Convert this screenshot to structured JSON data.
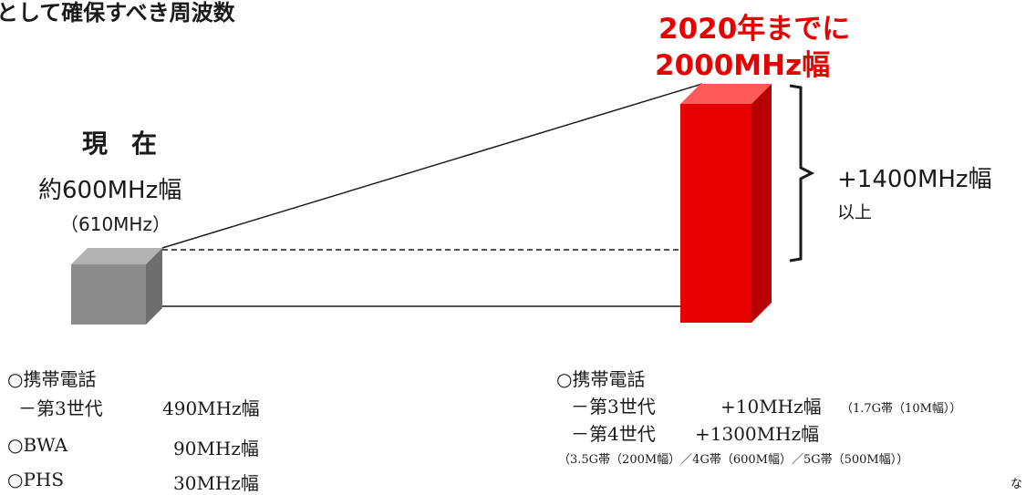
{
  "header": {
    "title": "として確保すべき周波数"
  },
  "current": {
    "label": "現在",
    "amount": "約600MHz幅",
    "exact": "（610MHz）",
    "breakdown": [
      {
        "label": "○携帯電話"
      },
      {
        "label": "－第3世代",
        "value": "490MHz幅"
      },
      {
        "label": "○BWA",
        "value": "90MHz幅"
      },
      {
        "label": "○PHS",
        "value": "30MHz幅"
      }
    ]
  },
  "target": {
    "line1": "2020年までに",
    "line2": "2000MHz幅",
    "increase": "+1400MHz幅",
    "increase_suffix": "以上",
    "breakdown": {
      "header": "○携帯電話",
      "gen3_label": "－第3世代",
      "gen3_value": "+10MHz幅",
      "gen3_note": "（1.7G帯（10M幅））",
      "gen4_label": "－第4世代",
      "gen4_value": "+1300MHz幅",
      "gen4_note": "（3.5G帯（200M幅）／4G帯（600M幅）／5G帯（500M幅））"
    }
  },
  "page_edge_char": "な",
  "colors": {
    "accent_red": "#e60000",
    "cube_gray": "#8c8c8c"
  }
}
